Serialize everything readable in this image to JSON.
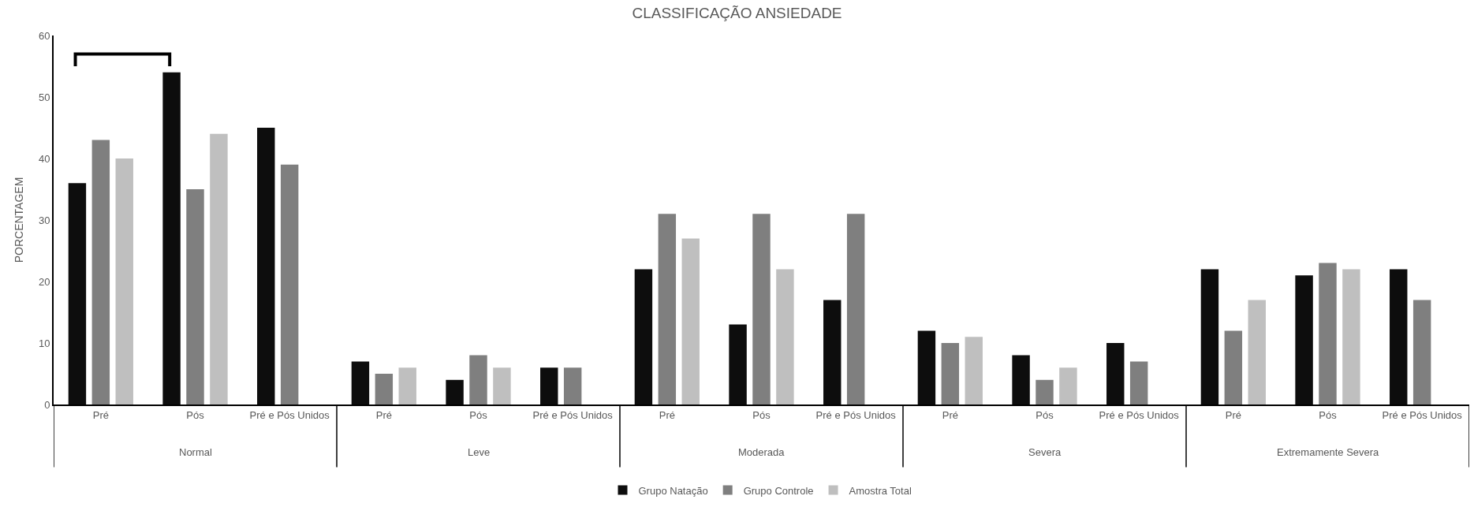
{
  "chart_data": {
    "type": "bar",
    "title": "CLASSIFICAÇÃO ANSIEDADE",
    "ylabel": "PORCENTAGEM",
    "categories": [
      "Pré",
      "Pós",
      "Pré e Pós Unidos",
      "Pré",
      "Pós",
      "Pré e Pós Unidos",
      "Pré",
      "Pós",
      "Pré e Pós Unidos",
      "Pré",
      "Pós",
      "Pré e Pós Unidos",
      "Pré",
      "Pós",
      "Pré e Pós Unidos"
    ],
    "annotations": [
      "Normal",
      "Leve",
      "Moderada",
      "Severa",
      "Extremamente Severa"
    ],
    "series": [
      {
        "name": "Grupo Natação",
        "color": "#0d0d0d",
        "values": [
          36,
          54,
          45,
          7,
          4,
          6,
          22,
          13,
          17,
          12,
          8,
          10,
          22,
          21,
          22
        ]
      },
      {
        "name": "Grupo Controle",
        "color": "#7f7f7f",
        "values": [
          43,
          35,
          39,
          5,
          8,
          6,
          31,
          31,
          31,
          10,
          4,
          7,
          12,
          23,
          17
        ]
      },
      {
        "name": "Amostra Total",
        "color": "#bfbfbf",
        "values": [
          40,
          44,
          null,
          6,
          6,
          null,
          27,
          22,
          null,
          11,
          6,
          null,
          17,
          22,
          null
        ]
      }
    ],
    "ylim": [
      0,
      60
    ],
    "yticks": [
      0,
      10,
      20,
      30,
      40,
      50,
      60
    ],
    "grid": false,
    "legend": "bottom"
  }
}
